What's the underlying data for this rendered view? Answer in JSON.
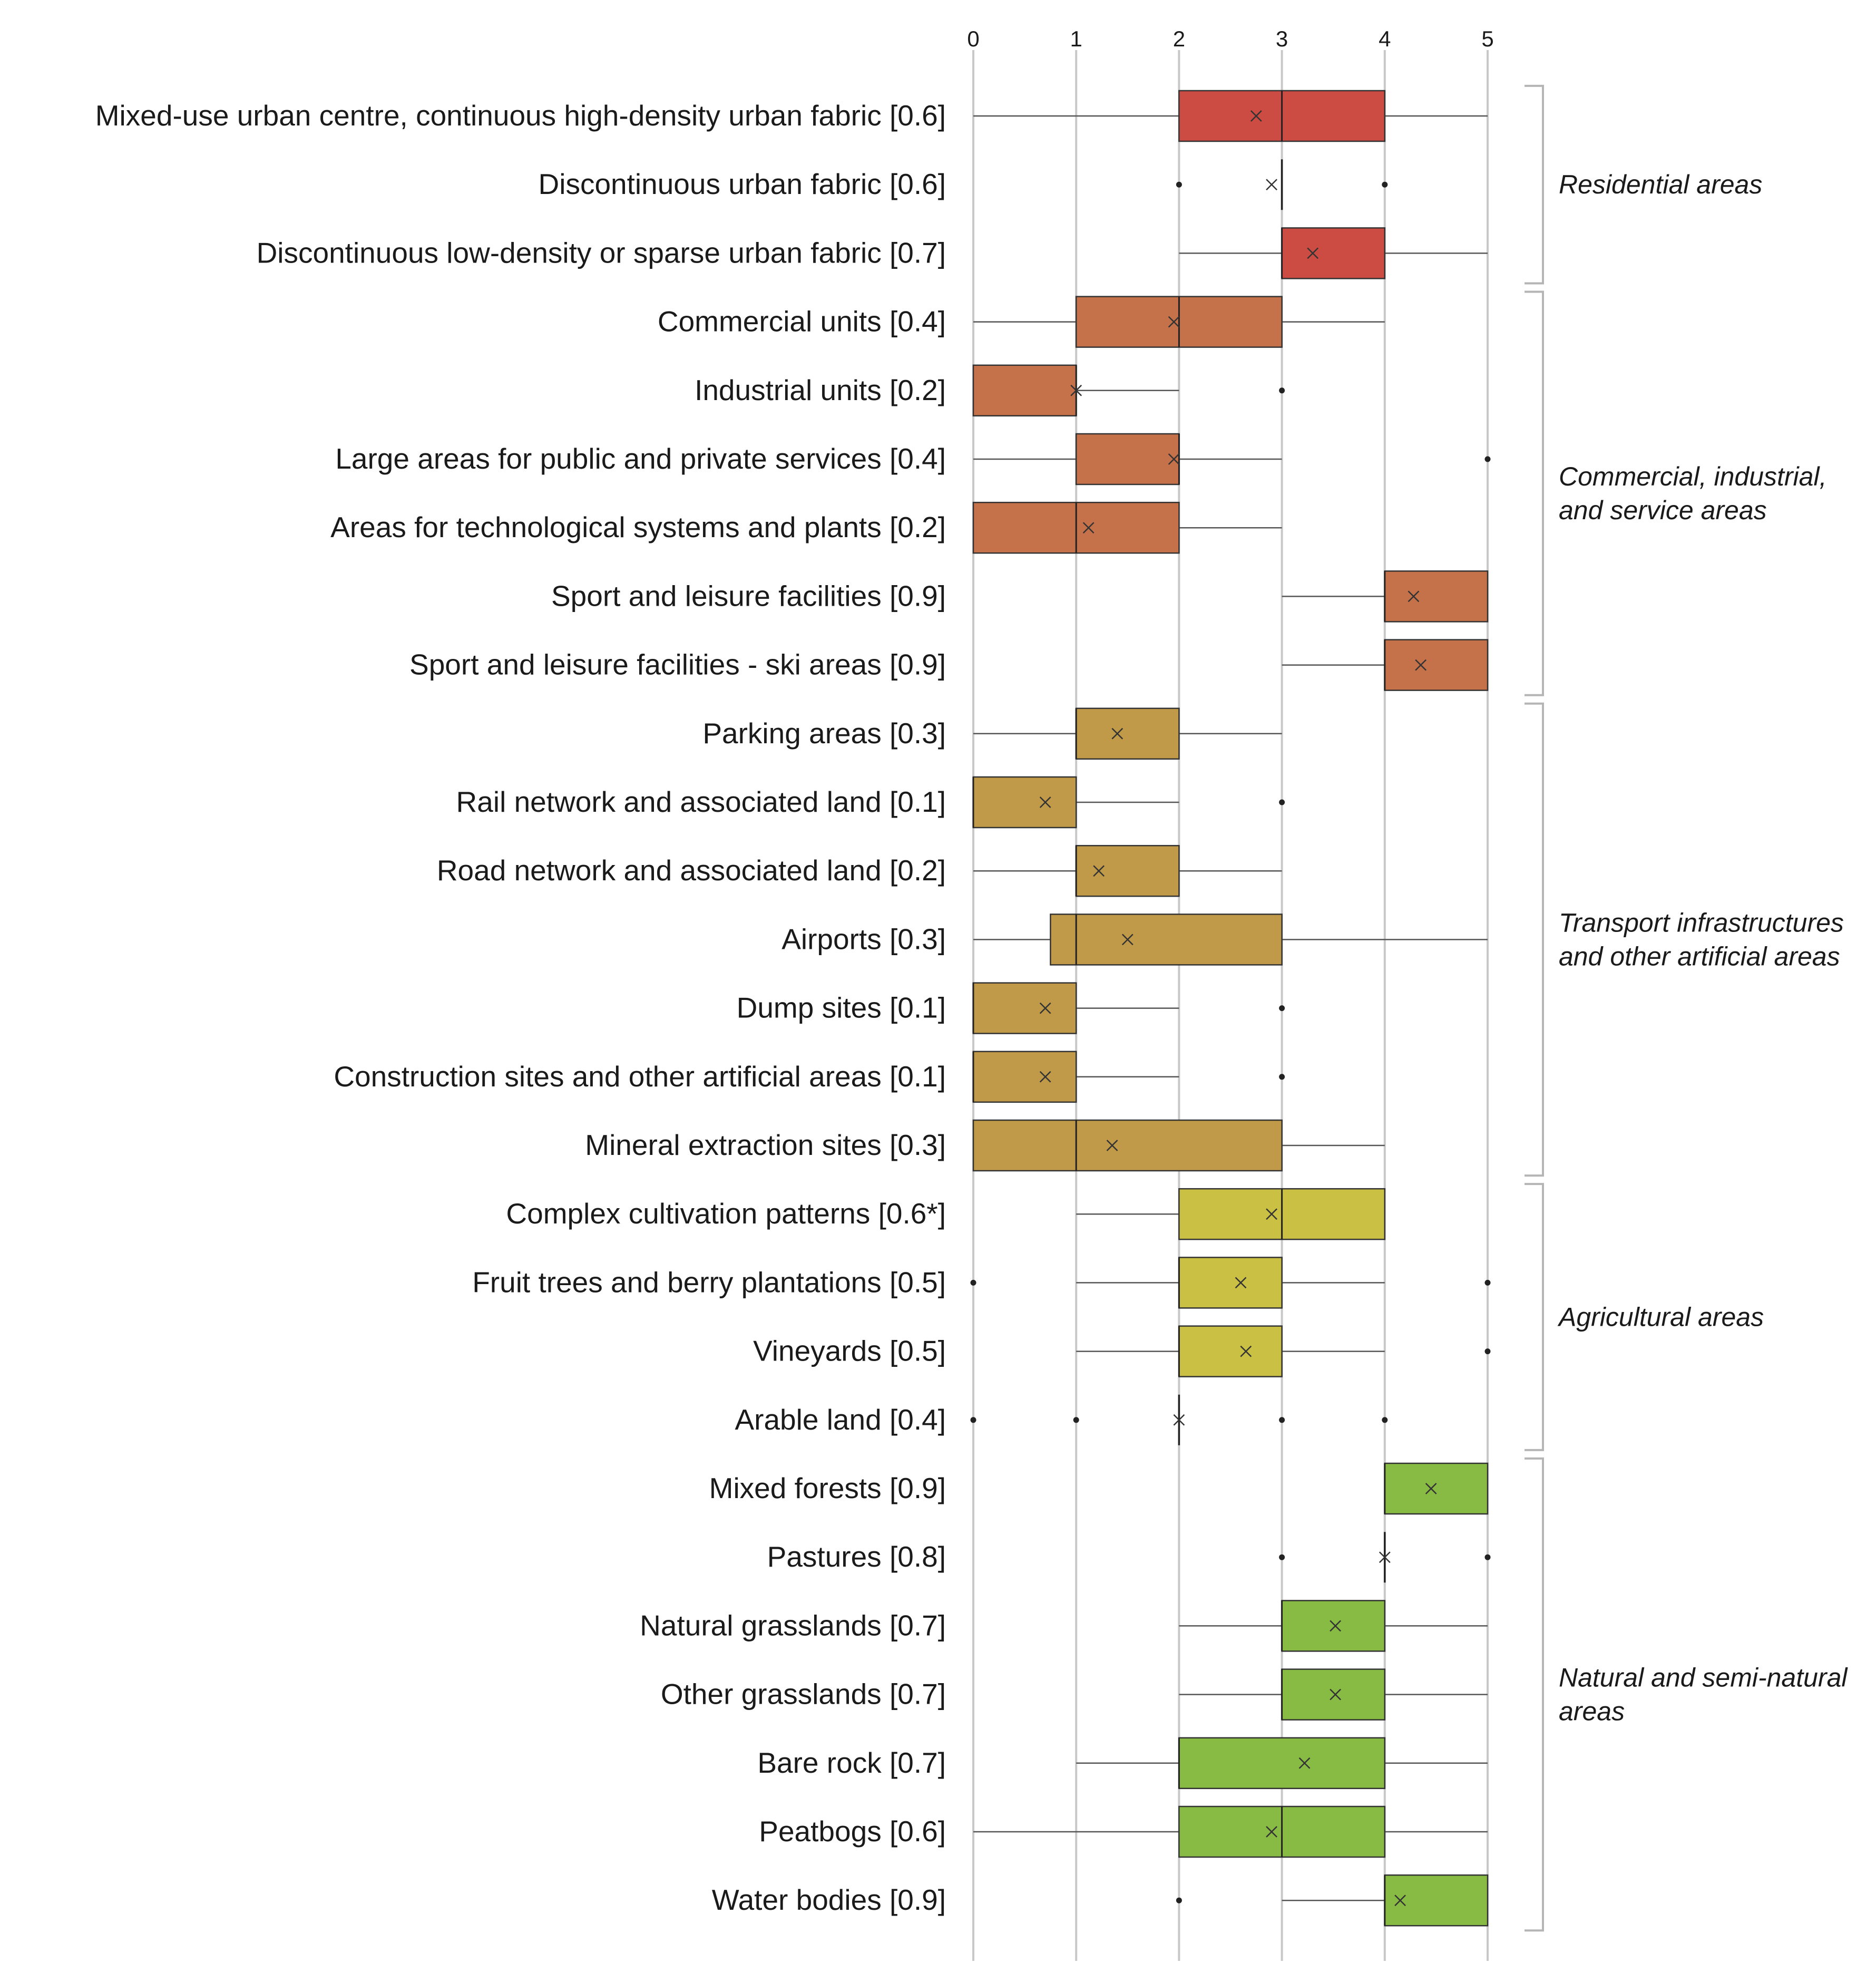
{
  "chart_data": {
    "type": "boxplot",
    "orientation": "horizontal",
    "xlim": [
      0,
      5
    ],
    "ticks": [
      "0",
      "1",
      "2",
      "3",
      "4",
      "5"
    ],
    "grid": true,
    "categories": [
      {
        "label": "Mixed-use urban centre, continuous high-density urban fabric [0.6]",
        "group": "Residential areas",
        "color": "#cc4c44",
        "whisker": [
          0,
          5
        ],
        "q1": 2,
        "median": 3,
        "q3": 4,
        "mean": 2.75,
        "outliers": []
      },
      {
        "label": "Discontinuous urban fabric [0.6]",
        "group": "Residential areas",
        "color": "#cc4c44",
        "whisker": null,
        "q1": 3,
        "median": 3,
        "q3": 3,
        "mean": 2.9,
        "outliers": [
          2,
          4
        ]
      },
      {
        "label": "Discontinuous low-density or sparse urban fabric [0.7]",
        "group": "Residential areas",
        "color": "#cc4c44",
        "whisker": [
          2,
          5
        ],
        "q1": 3,
        "median": 3,
        "q3": 4,
        "mean": 3.3,
        "outliers": []
      },
      {
        "label": "Commercial units [0.4]",
        "group": "Commercial, industrial, and service areas",
        "color": "#c5714a",
        "whisker": [
          0,
          4
        ],
        "q1": 1,
        "median": 2,
        "q3": 3,
        "mean": 1.95,
        "outliers": []
      },
      {
        "label": "Industrial units [0.2]",
        "group": "Commercial, industrial, and service areas",
        "color": "#c5714a",
        "whisker": [
          0,
          2
        ],
        "q1": 0,
        "median": 1,
        "q3": 1,
        "mean": 1.0,
        "outliers": [
          3
        ]
      },
      {
        "label": "Large areas for public and private services [0.4]",
        "group": "Commercial, industrial, and service areas",
        "color": "#c5714a",
        "whisker": [
          0,
          3
        ],
        "q1": 1,
        "median": 2,
        "q3": 2,
        "mean": 1.95,
        "outliers": [
          5
        ]
      },
      {
        "label": "Areas for technological systems and plants [0.2]",
        "group": "Commercial, industrial, and service areas",
        "color": "#c5714a",
        "whisker": [
          0,
          3
        ],
        "q1": 0,
        "median": 1,
        "q3": 2,
        "mean": 1.12,
        "outliers": []
      },
      {
        "label": "Sport and leisure facilities [0.9]",
        "group": "Commercial, industrial, and service areas",
        "color": "#c5714a",
        "whisker": [
          3,
          5
        ],
        "q1": 4,
        "median": 4,
        "q3": 5,
        "mean": 4.28,
        "outliers": []
      },
      {
        "label": "Sport and leisure facilities - ski areas [0.9]",
        "group": "Commercial, industrial, and service areas",
        "color": "#c5714a",
        "whisker": [
          3,
          5
        ],
        "q1": 4,
        "median": 4,
        "q3": 5,
        "mean": 4.35,
        "outliers": []
      },
      {
        "label": "Parking areas [0.3]",
        "group": "Transport infrastructures and other artificial areas",
        "color": "#c09a48",
        "whisker": [
          0,
          3
        ],
        "q1": 1,
        "median": 1,
        "q3": 2,
        "mean": 1.4,
        "outliers": []
      },
      {
        "label": "Rail network and associated land [0.1]",
        "group": "Transport infrastructures and other artificial areas",
        "color": "#c09a48",
        "whisker": [
          0,
          2
        ],
        "q1": 0,
        "median": 0,
        "q3": 1,
        "mean": 0.7,
        "outliers": [
          3
        ]
      },
      {
        "label": "Road network and associated land [0.2]",
        "group": "Transport infrastructures and other artificial areas",
        "color": "#c09a48",
        "whisker": [
          0,
          3
        ],
        "q1": 1,
        "median": 1,
        "q3": 2,
        "mean": 1.22,
        "outliers": []
      },
      {
        "label": "Airports [0.3]",
        "group": "Transport infrastructures and other artificial areas",
        "color": "#c09a48",
        "whisker": [
          0,
          5
        ],
        "q1": 0.75,
        "median": 1,
        "q3": 3,
        "mean": 1.5,
        "outliers": []
      },
      {
        "label": "Dump sites [0.1]",
        "group": "Transport infrastructures and other artificial areas",
        "color": "#c09a48",
        "whisker": [
          0,
          2
        ],
        "q1": 0,
        "median": 0,
        "q3": 1,
        "mean": 0.7,
        "outliers": [
          3
        ]
      },
      {
        "label": "Construction sites and other artificial areas [0.1]",
        "group": "Transport infrastructures and other artificial areas",
        "color": "#c09a48",
        "whisker": [
          0,
          2
        ],
        "q1": 0,
        "median": 0,
        "q3": 1,
        "mean": 0.7,
        "outliers": [
          3
        ]
      },
      {
        "label": "Mineral extraction sites [0.3]",
        "group": "Transport infrastructures and other artificial areas",
        "color": "#c09a48",
        "whisker": [
          0,
          4
        ],
        "q1": 0,
        "median": 1,
        "q3": 3,
        "mean": 1.35,
        "outliers": []
      },
      {
        "label": "Complex cultivation patterns [0.6*]",
        "group": "Agricultural areas",
        "color": "#c9c044",
        "whisker": [
          1,
          4
        ],
        "q1": 2,
        "median": 3,
        "q3": 4,
        "mean": 2.9,
        "outliers": []
      },
      {
        "label": "Fruit trees and berry plantations [0.5]",
        "group": "Agricultural areas",
        "color": "#c9c044",
        "whisker": [
          1,
          4
        ],
        "q1": 2,
        "median": 2,
        "q3": 3,
        "mean": 2.6,
        "outliers": [
          0,
          5
        ]
      },
      {
        "label": "Vineyards [0.5]",
        "group": "Agricultural areas",
        "color": "#c9c044",
        "whisker": [
          1,
          4
        ],
        "q1": 2,
        "median": 2,
        "q3": 3,
        "mean": 2.65,
        "outliers": [
          5
        ]
      },
      {
        "label": "Arable land [0.4]",
        "group": "Agricultural areas",
        "color": "#c9c044",
        "whisker": null,
        "q1": 2,
        "median": 2,
        "q3": 2,
        "mean": 2.0,
        "outliers": [
          0,
          1,
          3,
          4
        ]
      },
      {
        "label": "Mixed forests [0.9]",
        "group": "Natural and semi-natural areas",
        "color": "#88bb44",
        "whisker": null,
        "q1": 4,
        "median": 4,
        "q3": 5,
        "mean": 4.45,
        "outliers": []
      },
      {
        "label": "Pastures [0.8]",
        "group": "Natural and semi-natural areas",
        "color": "#88bb44",
        "whisker": null,
        "q1": 4,
        "median": 4,
        "q3": 4,
        "mean": 4.0,
        "outliers": [
          3,
          5
        ]
      },
      {
        "label": "Natural grasslands [0.7]",
        "group": "Natural and semi-natural areas",
        "color": "#88bb44",
        "whisker": [
          2,
          5
        ],
        "q1": 3,
        "median": 3,
        "q3": 4,
        "mean": 3.52,
        "outliers": []
      },
      {
        "label": "Other grasslands [0.7]",
        "group": "Natural and semi-natural areas",
        "color": "#88bb44",
        "whisker": [
          2,
          5
        ],
        "q1": 3,
        "median": 3,
        "q3": 4,
        "mean": 3.52,
        "outliers": []
      },
      {
        "label": "Bare rock [0.7]",
        "group": "Natural and semi-natural areas",
        "color": "#88bb44",
        "whisker": [
          1,
          5
        ],
        "q1": 2,
        "median": 2,
        "q3": 4,
        "mean": 3.22,
        "outliers": []
      },
      {
        "label": "Peatbogs [0.6]",
        "group": "Natural and semi-natural areas",
        "color": "#88bb44",
        "whisker": [
          0,
          5
        ],
        "q1": 2,
        "median": 3,
        "q3": 4,
        "mean": 2.9,
        "outliers": []
      },
      {
        "label": "Water bodies [0.9]",
        "group": "Natural and semi-natural areas",
        "color": "#88bb44",
        "whisker": [
          3,
          5
        ],
        "q1": 4,
        "median": 4,
        "q3": 5,
        "mean": 4.15,
        "outliers": [
          2
        ]
      }
    ],
    "groups": [
      {
        "label": [
          "Residential areas"
        ],
        "first": 0,
        "last": 2
      },
      {
        "label": [
          "Commercial, industrial,",
          "and service areas"
        ],
        "first": 3,
        "last": 8
      },
      {
        "label": [
          "Transport infrastructures",
          "and other artificial areas"
        ],
        "first": 9,
        "last": 15
      },
      {
        "label": [
          "Agricultural areas"
        ],
        "first": 16,
        "last": 19
      },
      {
        "label": [
          "Natural and semi-natural",
          "areas"
        ],
        "first": 20,
        "last": 26
      }
    ]
  }
}
